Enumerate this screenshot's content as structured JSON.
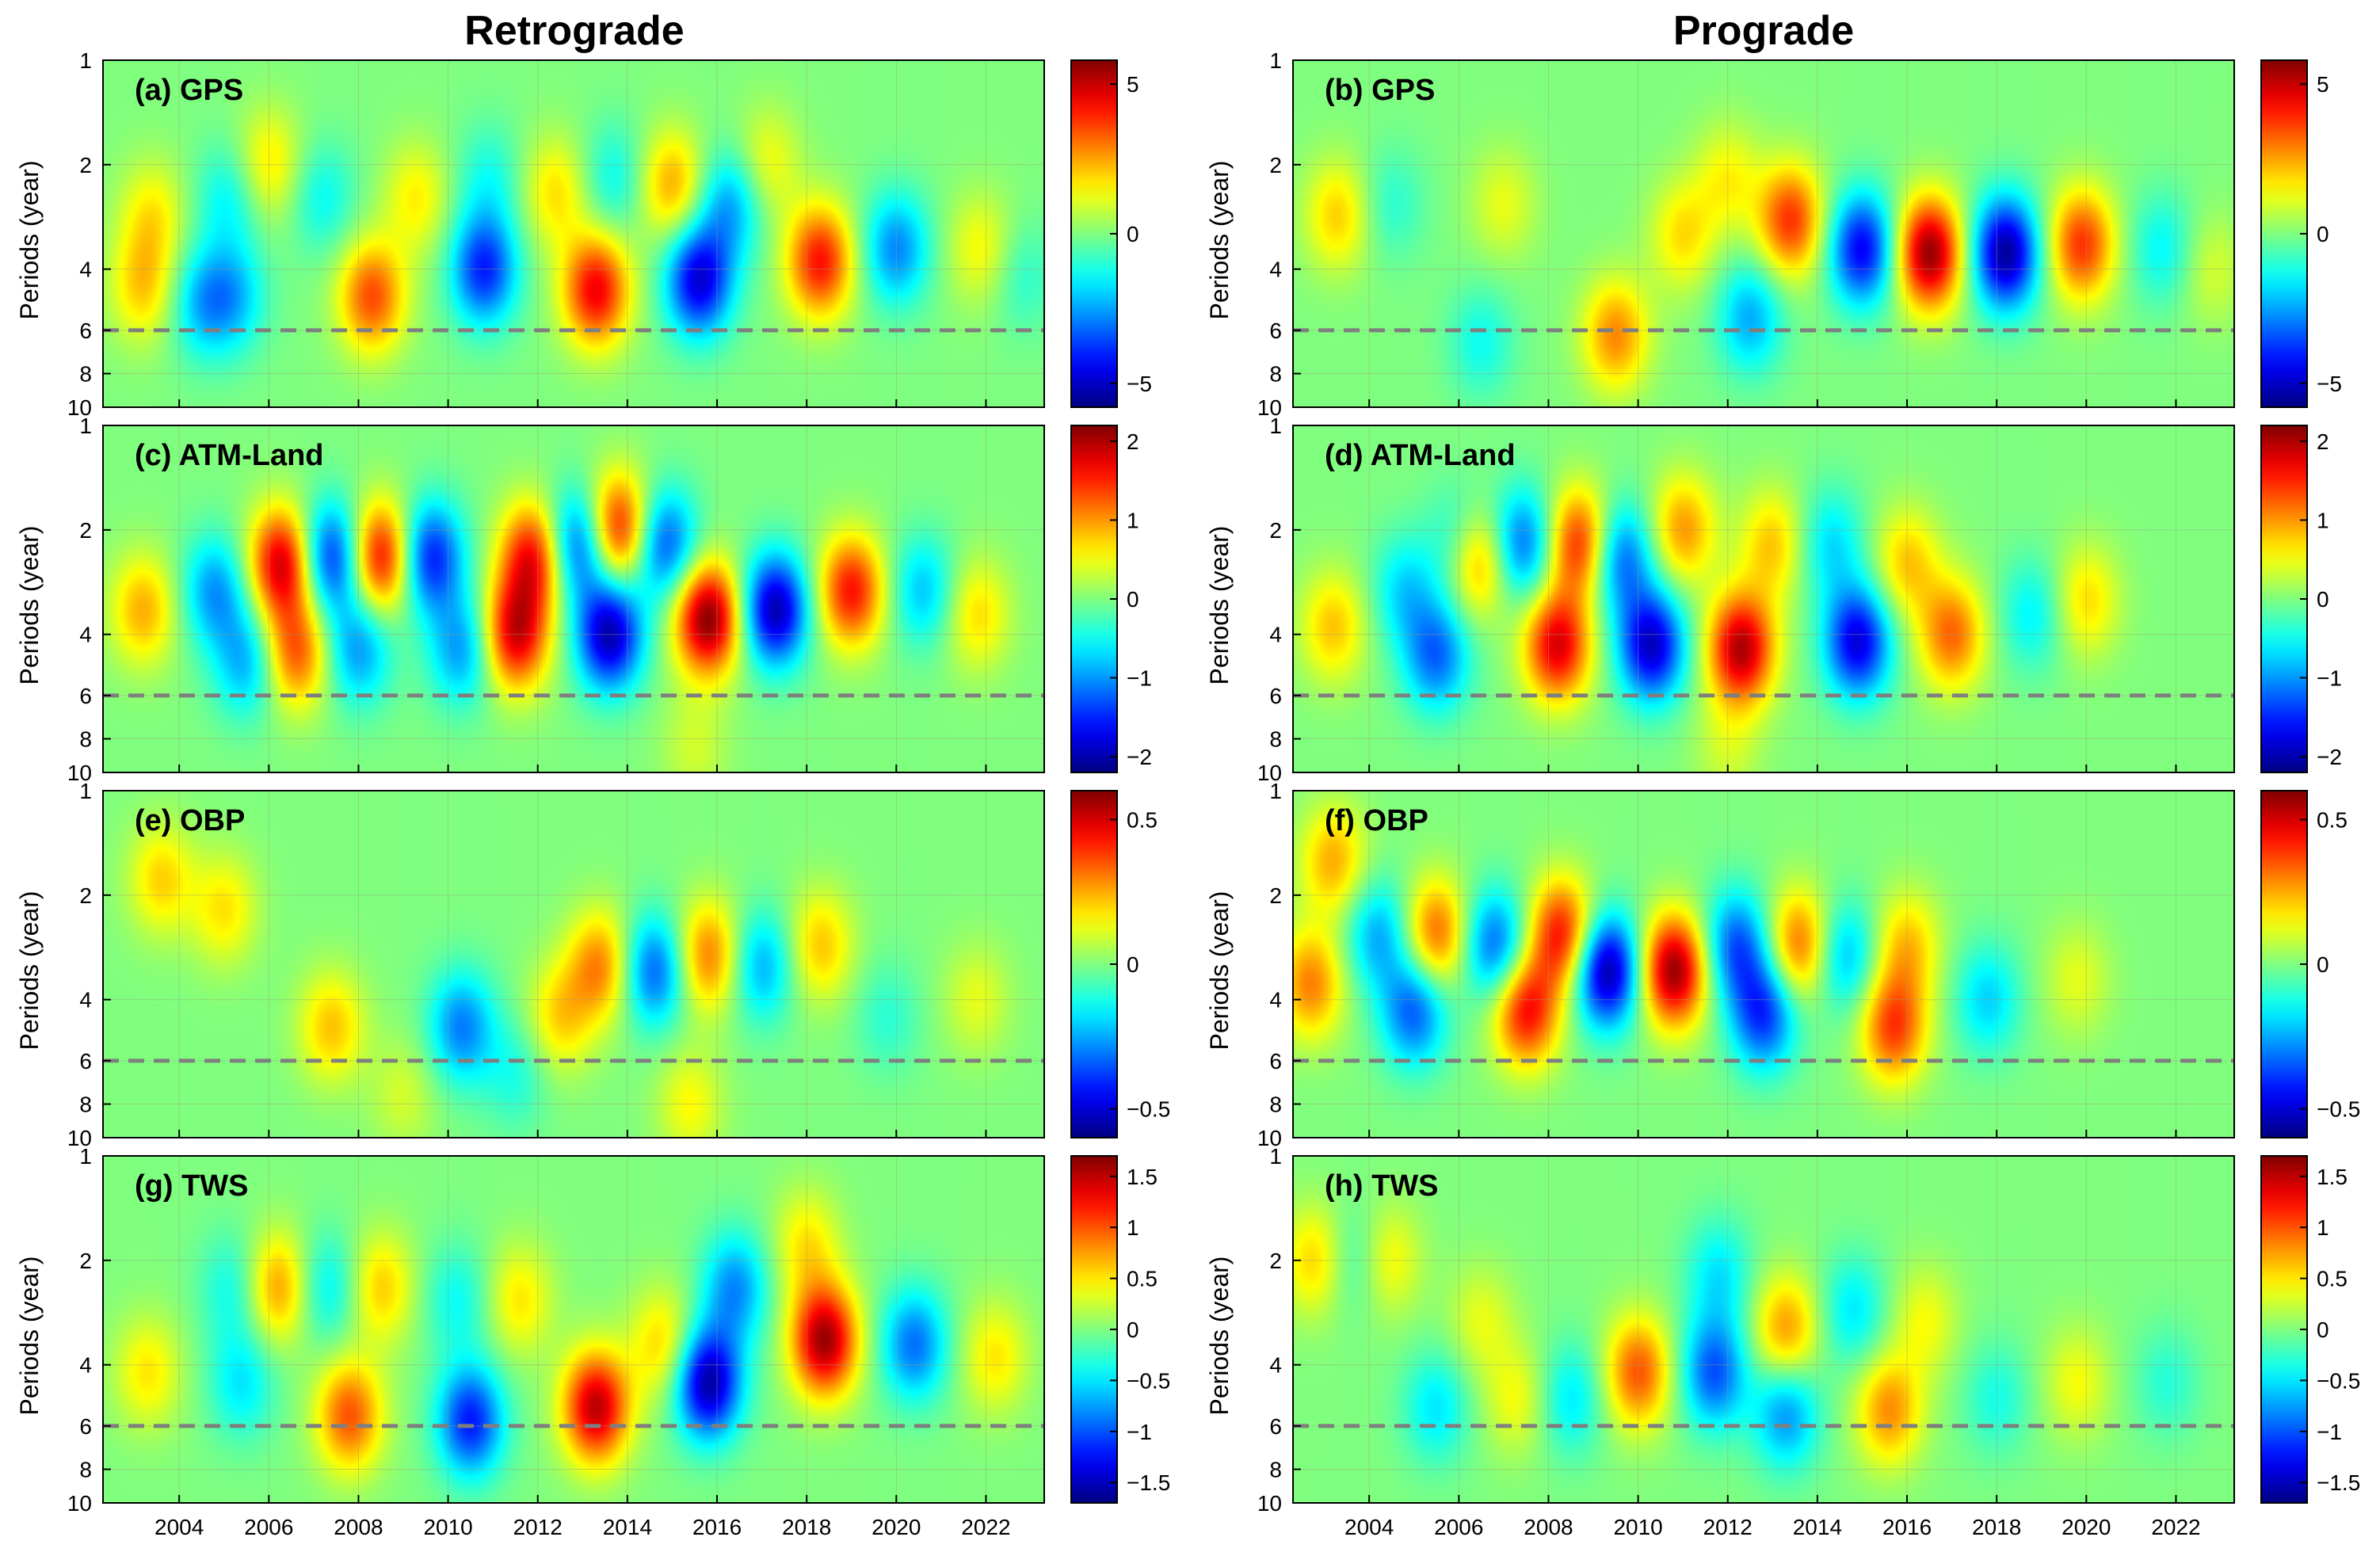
{
  "figure": {
    "column_titles": [
      "Retrograde",
      "Prograde"
    ],
    "ylabel": "Periods (year)"
  },
  "chart_data": [
    {
      "type": "heatmap",
      "id": "a",
      "panel_label": "(a) GPS",
      "column": "Retrograde",
      "row": 0,
      "xlabel": "",
      "ylabel": "Periods (year)",
      "x_ticks": [
        "2004",
        "2006",
        "2008",
        "2010",
        "2012",
        "2014",
        "2016",
        "2018",
        "2020",
        "2022"
      ],
      "y_ticks": [
        "1",
        "2",
        "4",
        "6",
        "8",
        "10"
      ],
      "y_scale": "log",
      "ylim": [
        1,
        10
      ],
      "xlim": [
        2002.3,
        2023.3
      ],
      "dashed_period": 6,
      "clim": [
        -5.8,
        5.8
      ],
      "colorbar_ticks": [
        "5",
        "0",
        "−5"
      ],
      "colormap": "jet",
      "features": [
        {
          "t": 2003.2,
          "p": 4.5,
          "v": 2.0
        },
        {
          "t": 2003.4,
          "p": 2.8,
          "v": 1.6
        },
        {
          "t": 2004.5,
          "p": 5.0,
          "v": -2.0
        },
        {
          "t": 2005.1,
          "p": 2.5,
          "v": -1.5
        },
        {
          "t": 2005.2,
          "p": 4.8,
          "v": -2.0
        },
        {
          "t": 2006.0,
          "p": 2.0,
          "v": 1.8
        },
        {
          "t": 2007.2,
          "p": 2.5,
          "v": -1.4
        },
        {
          "t": 2008.3,
          "p": 4.8,
          "v": 3.5
        },
        {
          "t": 2009.3,
          "p": 2.5,
          "v": 1.6
        },
        {
          "t": 2010.8,
          "p": 4.0,
          "v": -4.0
        },
        {
          "t": 2010.9,
          "p": 2.2,
          "v": -1.2
        },
        {
          "t": 2012.4,
          "p": 2.4,
          "v": 1.8
        },
        {
          "t": 2013.3,
          "p": 4.6,
          "v": 4.5
        },
        {
          "t": 2013.7,
          "p": 2.2,
          "v": -1.4
        },
        {
          "t": 2015.0,
          "p": 2.3,
          "v": 2.5
        },
        {
          "t": 2015.6,
          "p": 4.3,
          "v": -4.8
        },
        {
          "t": 2016.3,
          "p": 2.6,
          "v": -2.5
        },
        {
          "t": 2017.1,
          "p": 2.0,
          "v": 1.5
        },
        {
          "t": 2018.3,
          "p": 3.8,
          "v": 4.2
        },
        {
          "t": 2020.0,
          "p": 3.5,
          "v": -2.8
        },
        {
          "t": 2021.9,
          "p": 3.5,
          "v": 1.5
        },
        {
          "t": 2022.8,
          "p": 4.2,
          "v": -1.0
        }
      ]
    },
    {
      "type": "heatmap",
      "id": "b",
      "panel_label": "(b) GPS",
      "column": "Prograde",
      "row": 0,
      "xlabel": "",
      "ylabel": "Periods (year)",
      "x_ticks": [
        "2004",
        "2006",
        "2008",
        "2010",
        "2012",
        "2014",
        "2016",
        "2018",
        "2020",
        "2022"
      ],
      "y_ticks": [
        "1",
        "2",
        "4",
        "6",
        "8",
        "10"
      ],
      "y_scale": "log",
      "ylim": [
        1,
        10
      ],
      "xlim": [
        2002.3,
        2023.3
      ],
      "dashed_period": 6,
      "clim": [
        -5.8,
        5.8
      ],
      "colorbar_ticks": [
        "5",
        "0",
        "−5"
      ],
      "colormap": "jet",
      "features": [
        {
          "t": 2003.3,
          "p": 2.8,
          "v": 2.0
        },
        {
          "t": 2004.5,
          "p": 2.6,
          "v": -1.0
        },
        {
          "t": 2006.5,
          "p": 6.5,
          "v": -1.3
        },
        {
          "t": 2007.0,
          "p": 2.6,
          "v": 1.2
        },
        {
          "t": 2009.5,
          "p": 6.2,
          "v": 2.8
        },
        {
          "t": 2011.0,
          "p": 3.2,
          "v": 1.8
        },
        {
          "t": 2012.0,
          "p": 2.2,
          "v": 1.5
        },
        {
          "t": 2012.5,
          "p": 5.5,
          "v": -2.4
        },
        {
          "t": 2013.4,
          "p": 2.9,
          "v": 3.8
        },
        {
          "t": 2015.0,
          "p": 3.5,
          "v": -4.5
        },
        {
          "t": 2016.5,
          "p": 3.6,
          "v": 5.6
        },
        {
          "t": 2018.2,
          "p": 3.6,
          "v": -5.5
        },
        {
          "t": 2019.9,
          "p": 3.4,
          "v": 3.8
        },
        {
          "t": 2021.7,
          "p": 3.5,
          "v": -1.5
        },
        {
          "t": 2022.8,
          "p": 4.0,
          "v": 1.0
        }
      ]
    },
    {
      "type": "heatmap",
      "id": "c",
      "panel_label": "(c) ATM-Land",
      "column": "Retrograde",
      "row": 1,
      "xlabel": "",
      "ylabel": "Periods (year)",
      "x_ticks": [
        "2004",
        "2006",
        "2008",
        "2010",
        "2012",
        "2014",
        "2016",
        "2018",
        "2020",
        "2022"
      ],
      "y_ticks": [
        "1",
        "2",
        "4",
        "6",
        "8",
        "10"
      ],
      "y_scale": "log",
      "ylim": [
        1,
        10
      ],
      "xlim": [
        2002.3,
        2023.3
      ],
      "dashed_period": 6,
      "clim": [
        -2.2,
        2.2
      ],
      "colorbar_ticks": [
        "2",
        "1",
        "0",
        "−1",
        "−2"
      ],
      "colormap": "jet",
      "features": [
        {
          "t": 2003.2,
          "p": 3.4,
          "v": 0.9
        },
        {
          "t": 2004.8,
          "p": 3.0,
          "v": -1.0
        },
        {
          "t": 2005.5,
          "p": 4.8,
          "v": -0.9
        },
        {
          "t": 2006.3,
          "p": 2.5,
          "v": 1.9
        },
        {
          "t": 2006.6,
          "p": 4.5,
          "v": 1.3
        },
        {
          "t": 2007.4,
          "p": 2.4,
          "v": -1.6
        },
        {
          "t": 2008.0,
          "p": 4.4,
          "v": -1.0
        },
        {
          "t": 2008.5,
          "p": 2.4,
          "v": 1.8
        },
        {
          "t": 2009.6,
          "p": 2.4,
          "v": -1.6
        },
        {
          "t": 2010.3,
          "p": 4.4,
          "v": -1.0
        },
        {
          "t": 2011.5,
          "p": 4.0,
          "v": 1.8
        },
        {
          "t": 2011.9,
          "p": 2.4,
          "v": 1.7
        },
        {
          "t": 2012.9,
          "p": 2.2,
          "v": -1.5
        },
        {
          "t": 2013.6,
          "p": 4.0,
          "v": -2.0
        },
        {
          "t": 2013.8,
          "p": 2.0,
          "v": 1.8
        },
        {
          "t": 2014.8,
          "p": 2.2,
          "v": -1.4
        },
        {
          "t": 2015.8,
          "p": 3.6,
          "v": 2.2
        },
        {
          "t": 2017.3,
          "p": 3.4,
          "v": -2.0
        },
        {
          "t": 2019.0,
          "p": 3.0,
          "v": 1.6
        },
        {
          "t": 2020.6,
          "p": 3.0,
          "v": -0.8
        },
        {
          "t": 2021.8,
          "p": 3.5,
          "v": 0.7
        },
        {
          "t": 2015.5,
          "p": 8.5,
          "v": 0.35
        }
      ]
    },
    {
      "type": "heatmap",
      "id": "d",
      "panel_label": "(d) ATM-Land",
      "column": "Prograde",
      "row": 1,
      "xlabel": "",
      "ylabel": "Periods (year)",
      "x_ticks": [
        "2004",
        "2006",
        "2008",
        "2010",
        "2012",
        "2014",
        "2016",
        "2018",
        "2020",
        "2022"
      ],
      "y_ticks": [
        "1",
        "2",
        "4",
        "6",
        "8",
        "10"
      ],
      "y_scale": "log",
      "ylim": [
        1,
        10
      ],
      "xlim": [
        2002.3,
        2023.3
      ],
      "dashed_period": 6,
      "clim": [
        -2.2,
        2.2
      ],
      "colorbar_ticks": [
        "2",
        "1",
        "0",
        "−1",
        "−2"
      ],
      "colormap": "jet",
      "features": [
        {
          "t": 2003.2,
          "p": 3.8,
          "v": 0.8
        },
        {
          "t": 2004.8,
          "p": 3.0,
          "v": -0.7
        },
        {
          "t": 2005.5,
          "p": 4.6,
          "v": -1.2
        },
        {
          "t": 2006.1,
          "p": 2.2,
          "v": -1.0
        },
        {
          "t": 2006.4,
          "p": 2.4,
          "v": 1.6
        },
        {
          "t": 2007.4,
          "p": 2.2,
          "v": -1.3
        },
        {
          "t": 2008.2,
          "p": 4.3,
          "v": 1.8
        },
        {
          "t": 2008.7,
          "p": 2.2,
          "v": 1.6
        },
        {
          "t": 2009.6,
          "p": 2.4,
          "v": -1.3
        },
        {
          "t": 2010.3,
          "p": 4.3,
          "v": -1.9
        },
        {
          "t": 2011.0,
          "p": 2.0,
          "v": 1.0
        },
        {
          "t": 2012.3,
          "p": 4.4,
          "v": 2.0
        },
        {
          "t": 2013.0,
          "p": 2.2,
          "v": 0.8
        },
        {
          "t": 2014.9,
          "p": 4.2,
          "v": -1.8
        },
        {
          "t": 2014.3,
          "p": 2.2,
          "v": -0.7
        },
        {
          "t": 2016.0,
          "p": 2.5,
          "v": 0.8
        },
        {
          "t": 2017.0,
          "p": 4.0,
          "v": 1.2
        },
        {
          "t": 2018.8,
          "p": 3.5,
          "v": -0.6
        },
        {
          "t": 2020.0,
          "p": 3.2,
          "v": 0.7
        },
        {
          "t": 2012.0,
          "p": 8.5,
          "v": 0.35
        }
      ]
    },
    {
      "type": "heatmap",
      "id": "e",
      "panel_label": "(e) OBP",
      "column": "Retrograde",
      "row": 2,
      "xlabel": "",
      "ylabel": "Periods (year)",
      "x_ticks": [
        "2004",
        "2006",
        "2008",
        "2010",
        "2012",
        "2014",
        "2016",
        "2018",
        "2020",
        "2022"
      ],
      "y_ticks": [
        "1",
        "2",
        "4",
        "6",
        "8",
        "10"
      ],
      "y_scale": "log",
      "ylim": [
        1,
        10
      ],
      "xlim": [
        2002.3,
        2023.3
      ],
      "dashed_period": 6,
      "clim": [
        -0.6,
        0.6
      ],
      "colorbar_ticks": [
        "0.5",
        "0",
        "−0.5"
      ],
      "colormap": "jet",
      "features": [
        {
          "t": 2003.6,
          "p": 1.8,
          "v": 0.2
        },
        {
          "t": 2005.0,
          "p": 2.2,
          "v": 0.18
        },
        {
          "t": 2007.4,
          "p": 4.8,
          "v": 0.22
        },
        {
          "t": 2009.0,
          "p": 7.5,
          "v": 0.1
        },
        {
          "t": 2010.3,
          "p": 4.8,
          "v": -0.3
        },
        {
          "t": 2011.5,
          "p": 6.5,
          "v": -0.12
        },
        {
          "t": 2012.5,
          "p": 4.5,
          "v": 0.2
        },
        {
          "t": 2013.4,
          "p": 3.2,
          "v": 0.3
        },
        {
          "t": 2014.6,
          "p": 3.3,
          "v": -0.35
        },
        {
          "t": 2015.8,
          "p": 3.0,
          "v": 0.32
        },
        {
          "t": 2015.4,
          "p": 8.0,
          "v": 0.15
        },
        {
          "t": 2017.0,
          "p": 3.2,
          "v": -0.25
        },
        {
          "t": 2018.3,
          "p": 2.8,
          "v": 0.22
        },
        {
          "t": 2019.8,
          "p": 4.5,
          "v": -0.1
        },
        {
          "t": 2021.8,
          "p": 4.0,
          "v": 0.12
        }
      ]
    },
    {
      "type": "heatmap",
      "id": "f",
      "panel_label": "(f) OBP",
      "column": "Prograde",
      "row": 2,
      "xlabel": "",
      "ylabel": "Periods (year)",
      "x_ticks": [
        "2004",
        "2006",
        "2008",
        "2010",
        "2012",
        "2014",
        "2016",
        "2018",
        "2020",
        "2022"
      ],
      "y_ticks": [
        "1",
        "2",
        "4",
        "6",
        "8",
        "10"
      ],
      "y_scale": "log",
      "ylim": [
        1,
        10
      ],
      "xlim": [
        2002.3,
        2023.3
      ],
      "dashed_period": 6,
      "clim": [
        -0.6,
        0.6
      ],
      "colorbar_ticks": [
        "0.5",
        "0",
        "−0.5"
      ],
      "colormap": "jet",
      "features": [
        {
          "t": 2002.7,
          "p": 3.6,
          "v": 0.3
        },
        {
          "t": 2003.2,
          "p": 1.6,
          "v": 0.25
        },
        {
          "t": 2004.2,
          "p": 2.6,
          "v": -0.25
        },
        {
          "t": 2005.0,
          "p": 4.3,
          "v": -0.35
        },
        {
          "t": 2005.5,
          "p": 2.6,
          "v": 0.35
        },
        {
          "t": 2006.8,
          "p": 2.8,
          "v": -0.35
        },
        {
          "t": 2007.5,
          "p": 4.3,
          "v": 0.45
        },
        {
          "t": 2008.3,
          "p": 2.6,
          "v": 0.45
        },
        {
          "t": 2009.3,
          "p": 3.3,
          "v": -0.58
        },
        {
          "t": 2010.8,
          "p": 3.3,
          "v": 0.58
        },
        {
          "t": 2012.2,
          "p": 2.8,
          "v": -0.35
        },
        {
          "t": 2012.8,
          "p": 4.4,
          "v": -0.4
        },
        {
          "t": 2013.6,
          "p": 2.8,
          "v": 0.35
        },
        {
          "t": 2014.6,
          "p": 3.0,
          "v": -0.25
        },
        {
          "t": 2015.7,
          "p": 4.8,
          "v": 0.38
        },
        {
          "t": 2016.0,
          "p": 2.8,
          "v": 0.22
        },
        {
          "t": 2017.8,
          "p": 4.0,
          "v": -0.2
        },
        {
          "t": 2019.8,
          "p": 3.5,
          "v": 0.12
        }
      ]
    },
    {
      "type": "heatmap",
      "id": "g",
      "panel_label": "(g) TWS",
      "column": "Retrograde",
      "row": 3,
      "xlabel": "",
      "ylabel": "Periods (year)",
      "x_ticks": [
        "2004",
        "2006",
        "2008",
        "2010",
        "2012",
        "2014",
        "2016",
        "2018",
        "2020",
        "2022"
      ],
      "y_ticks": [
        "1",
        "2",
        "4",
        "6",
        "8",
        "10"
      ],
      "y_scale": "log",
      "ylim": [
        1,
        10
      ],
      "xlim": [
        2002.3,
        2023.3
      ],
      "dashed_period": 6,
      "clim": [
        -1.7,
        1.7
      ],
      "colorbar_ticks": [
        "1.5",
        "1",
        "0.5",
        "0",
        "−0.5",
        "−1",
        "−1.5"
      ],
      "colormap": "jet",
      "features": [
        {
          "t": 2003.3,
          "p": 4.2,
          "v": 0.5
        },
        {
          "t": 2005.4,
          "p": 4.5,
          "v": -0.5
        },
        {
          "t": 2005.2,
          "p": 2.4,
          "v": -0.4
        },
        {
          "t": 2006.2,
          "p": 2.4,
          "v": 0.8
        },
        {
          "t": 2007.3,
          "p": 2.4,
          "v": -0.5
        },
        {
          "t": 2007.8,
          "p": 5.6,
          "v": 1.0
        },
        {
          "t": 2008.5,
          "p": 2.4,
          "v": 0.6
        },
        {
          "t": 2010.2,
          "p": 2.6,
          "v": -0.4
        },
        {
          "t": 2010.5,
          "p": 5.8,
          "v": -1.2
        },
        {
          "t": 2011.6,
          "p": 2.6,
          "v": 0.5
        },
        {
          "t": 2013.3,
          "p": 5.3,
          "v": 1.5
        },
        {
          "t": 2014.8,
          "p": 3.5,
          "v": 0.6
        },
        {
          "t": 2015.8,
          "p": 4.5,
          "v": -1.6
        },
        {
          "t": 2016.4,
          "p": 2.4,
          "v": -0.8
        },
        {
          "t": 2018.4,
          "p": 3.4,
          "v": 1.6
        },
        {
          "t": 2018.0,
          "p": 1.8,
          "v": 0.5
        },
        {
          "t": 2020.4,
          "p": 3.5,
          "v": -0.9
        },
        {
          "t": 2022.2,
          "p": 3.8,
          "v": 0.5
        }
      ]
    },
    {
      "type": "heatmap",
      "id": "h",
      "panel_label": "(h) TWS",
      "column": "Prograde",
      "row": 3,
      "xlabel": "",
      "ylabel": "Periods (year)",
      "x_ticks": [
        "2004",
        "2006",
        "2008",
        "2010",
        "2012",
        "2014",
        "2016",
        "2018",
        "2020",
        "2022"
      ],
      "y_ticks": [
        "1",
        "2",
        "4",
        "6",
        "8",
        "10"
      ],
      "y_scale": "log",
      "ylim": [
        1,
        10
      ],
      "xlim": [
        2002.3,
        2023.3
      ],
      "dashed_period": 6,
      "clim": [
        -1.7,
        1.7
      ],
      "colorbar_ticks": [
        "1.5",
        "1",
        "0.5",
        "0",
        "−0.5",
        "−1",
        "−1.5"
      ],
      "colormap": "jet",
      "features": [
        {
          "t": 2002.8,
          "p": 2.0,
          "v": 0.6
        },
        {
          "t": 2003.7,
          "p": 2.0,
          "v": -0.4
        },
        {
          "t": 2004.4,
          "p": 2.0,
          "v": 0.5
        },
        {
          "t": 2005.5,
          "p": 5.3,
          "v": -0.5
        },
        {
          "t": 2006.5,
          "p": 3.0,
          "v": 0.35
        },
        {
          "t": 2007.3,
          "p": 5.0,
          "v": 0.4
        },
        {
          "t": 2008.5,
          "p": 5.0,
          "v": -0.5
        },
        {
          "t": 2010.0,
          "p": 4.2,
          "v": 1.0
        },
        {
          "t": 2011.7,
          "p": 4.2,
          "v": -1.0
        },
        {
          "t": 2011.8,
          "p": 2.2,
          "v": -0.5
        },
        {
          "t": 2013.3,
          "p": 3.2,
          "v": 0.8
        },
        {
          "t": 2013.3,
          "p": 5.5,
          "v": -0.8
        },
        {
          "t": 2014.8,
          "p": 2.8,
          "v": -0.5
        },
        {
          "t": 2015.6,
          "p": 5.4,
          "v": 0.8
        },
        {
          "t": 2016.4,
          "p": 3.0,
          "v": 0.4
        },
        {
          "t": 2018.0,
          "p": 5.0,
          "v": -0.35
        },
        {
          "t": 2019.8,
          "p": 4.5,
          "v": 0.4
        },
        {
          "t": 2021.8,
          "p": 4.5,
          "v": -0.3
        }
      ]
    }
  ]
}
